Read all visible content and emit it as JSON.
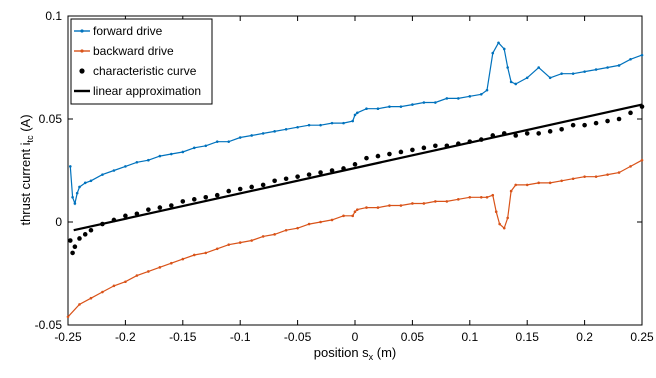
{
  "chart_data": {
    "type": "line",
    "xlabel_main": "position s",
    "xlabel_sub": "x",
    "xlabel_unit": " (m)",
    "ylabel_main": "thrust current i",
    "ylabel_sub": "tc",
    "ylabel_unit": " (A)",
    "xlim": [
      -0.25,
      0.25
    ],
    "ylim": [
      -0.05,
      0.1
    ],
    "xticks": [
      -0.25,
      -0.2,
      -0.15,
      -0.1,
      -0.05,
      0,
      0.05,
      0.1,
      0.15,
      0.2,
      0.25
    ],
    "xtick_labels": [
      "-0.25",
      "-0.2",
      "-0.15",
      "-0.1",
      "-0.05",
      "0",
      "0.05",
      "0.1",
      "0.15",
      "0.2",
      "0.25"
    ],
    "yticks": [
      -0.05,
      0,
      0.05,
      0.1
    ],
    "ytick_labels": [
      "-0.05",
      "0",
      "0.05",
      "0.1"
    ],
    "grid": false,
    "legend_position": "top-left",
    "series": [
      {
        "name": "forward drive",
        "color": "#0072BD",
        "marker": "dot",
        "x": [
          -0.248,
          -0.246,
          -0.244,
          -0.242,
          -0.24,
          -0.235,
          -0.23,
          -0.22,
          -0.21,
          -0.2,
          -0.19,
          -0.18,
          -0.17,
          -0.16,
          -0.15,
          -0.14,
          -0.13,
          -0.12,
          -0.11,
          -0.1,
          -0.09,
          -0.08,
          -0.07,
          -0.06,
          -0.05,
          -0.04,
          -0.03,
          -0.02,
          -0.01,
          -0.002,
          0.0,
          0.002,
          0.01,
          0.02,
          0.03,
          0.04,
          0.05,
          0.06,
          0.07,
          0.08,
          0.09,
          0.1,
          0.11,
          0.115,
          0.12,
          0.125,
          0.13,
          0.133,
          0.136,
          0.14,
          0.15,
          0.16,
          0.17,
          0.18,
          0.19,
          0.2,
          0.21,
          0.22,
          0.23,
          0.24,
          0.25
        ],
        "y": [
          0.027,
          0.012,
          0.009,
          0.014,
          0.017,
          0.019,
          0.02,
          0.023,
          0.025,
          0.027,
          0.029,
          0.03,
          0.032,
          0.033,
          0.034,
          0.036,
          0.037,
          0.039,
          0.039,
          0.041,
          0.042,
          0.043,
          0.044,
          0.045,
          0.046,
          0.047,
          0.047,
          0.048,
          0.048,
          0.049,
          0.052,
          0.053,
          0.055,
          0.055,
          0.056,
          0.056,
          0.057,
          0.058,
          0.058,
          0.06,
          0.06,
          0.061,
          0.062,
          0.064,
          0.082,
          0.087,
          0.084,
          0.075,
          0.068,
          0.067,
          0.07,
          0.075,
          0.07,
          0.072,
          0.072,
          0.073,
          0.074,
          0.075,
          0.076,
          0.079,
          0.081
        ]
      },
      {
        "name": "backward drive",
        "color": "#D95319",
        "marker": "dot",
        "x": [
          -0.25,
          -0.24,
          -0.23,
          -0.22,
          -0.21,
          -0.2,
          -0.19,
          -0.18,
          -0.17,
          -0.16,
          -0.15,
          -0.14,
          -0.13,
          -0.12,
          -0.11,
          -0.1,
          -0.09,
          -0.08,
          -0.07,
          -0.06,
          -0.05,
          -0.04,
          -0.03,
          -0.02,
          -0.01,
          -0.002,
          0.0,
          0.002,
          0.01,
          0.02,
          0.03,
          0.04,
          0.05,
          0.06,
          0.07,
          0.08,
          0.09,
          0.1,
          0.11,
          0.115,
          0.12,
          0.123,
          0.126,
          0.13,
          0.133,
          0.136,
          0.14,
          0.15,
          0.16,
          0.17,
          0.18,
          0.19,
          0.2,
          0.21,
          0.22,
          0.23,
          0.24,
          0.25
        ],
        "y": [
          -0.046,
          -0.04,
          -0.037,
          -0.034,
          -0.031,
          -0.029,
          -0.026,
          -0.024,
          -0.022,
          -0.02,
          -0.018,
          -0.016,
          -0.015,
          -0.013,
          -0.011,
          -0.01,
          -0.009,
          -0.007,
          -0.006,
          -0.004,
          -0.003,
          -0.001,
          0.0,
          0.001,
          0.003,
          0.003,
          0.005,
          0.006,
          0.007,
          0.007,
          0.008,
          0.008,
          0.009,
          0.009,
          0.01,
          0.01,
          0.011,
          0.012,
          0.012,
          0.012,
          0.013,
          0.005,
          -0.001,
          -0.003,
          0.002,
          0.015,
          0.018,
          0.018,
          0.019,
          0.019,
          0.02,
          0.021,
          0.022,
          0.022,
          0.023,
          0.024,
          0.027,
          0.03
        ]
      },
      {
        "name": "characteristic curve",
        "color": "#000000",
        "marker": "filled-circle",
        "x": [
          -0.248,
          -0.246,
          -0.244,
          -0.24,
          -0.235,
          -0.23,
          -0.22,
          -0.21,
          -0.2,
          -0.19,
          -0.18,
          -0.17,
          -0.16,
          -0.15,
          -0.14,
          -0.13,
          -0.12,
          -0.11,
          -0.1,
          -0.09,
          -0.08,
          -0.07,
          -0.06,
          -0.05,
          -0.04,
          -0.03,
          -0.02,
          -0.01,
          0.0,
          0.01,
          0.02,
          0.03,
          0.04,
          0.05,
          0.06,
          0.07,
          0.08,
          0.09,
          0.1,
          0.11,
          0.12,
          0.13,
          0.14,
          0.15,
          0.16,
          0.17,
          0.18,
          0.19,
          0.2,
          0.21,
          0.22,
          0.23,
          0.24,
          0.25
        ],
        "y": [
          -0.009,
          -0.015,
          -0.012,
          -0.008,
          -0.006,
          -0.004,
          -0.001,
          0.001,
          0.003,
          0.004,
          0.006,
          0.007,
          0.008,
          0.01,
          0.011,
          0.012,
          0.013,
          0.015,
          0.016,
          0.017,
          0.018,
          0.02,
          0.021,
          0.022,
          0.023,
          0.024,
          0.025,
          0.026,
          0.028,
          0.031,
          0.032,
          0.033,
          0.034,
          0.035,
          0.036,
          0.037,
          0.037,
          0.038,
          0.039,
          0.04,
          0.042,
          0.043,
          0.042,
          0.043,
          0.043,
          0.044,
          0.045,
          0.047,
          0.047,
          0.048,
          0.049,
          0.05,
          0.053,
          0.056
        ]
      },
      {
        "name": "linear approximation",
        "color": "#000000",
        "marker": "none",
        "x": [
          -0.245,
          0.25
        ],
        "y": [
          -0.004,
          0.057
        ]
      }
    ]
  }
}
